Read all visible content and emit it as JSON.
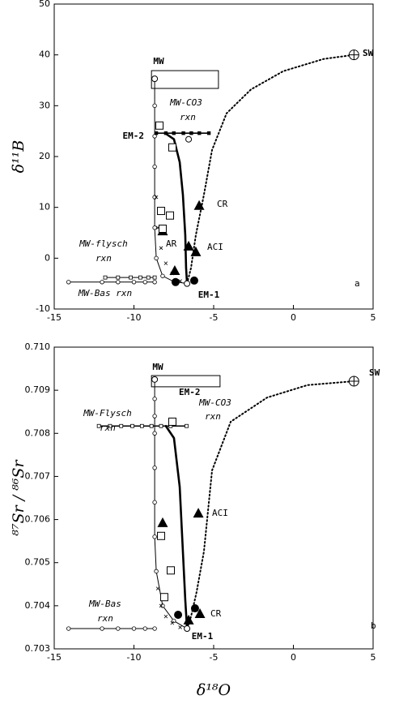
{
  "chart_data": [
    {
      "type": "line",
      "y_label": "δ¹¹B",
      "xlim": [
        -15,
        5
      ],
      "xticks": [
        -15,
        -10,
        -5,
        0,
        5
      ],
      "ylim": [
        -10,
        50
      ],
      "yticks": [
        -10,
        0,
        10,
        20,
        30,
        40,
        50
      ],
      "box": {
        "xlim": [
          -8.9,
          -4.7
        ],
        "ylim": [
          33.4,
          36.9
        ]
      },
      "annotations": [
        "MW",
        "SW",
        "EM-2",
        "EM-1",
        "CR",
        "ACI",
        "AR",
        "MW-CO3",
        "rxn",
        "MW-flysch",
        "rxn",
        "MW-Bas rxn",
        "a"
      ],
      "series": [
        {
          "line": "dotted",
          "marker": "none",
          "x": [
            -6.67,
            -6.42,
            -6.12,
            -5.61,
            -5.1,
            -4.19,
            -2.66,
            -0.63,
            1.9,
            3.8
          ],
          "values": [
            -5,
            -1.9,
            4.5,
            12.5,
            21.3,
            28.5,
            33.2,
            36.8,
            39.2,
            40
          ]
        },
        {
          "line": "thick",
          "marker": "none",
          "x": [
            -8.0,
            -7.49,
            -7.13,
            -6.93,
            -6.78,
            -6.73,
            -6.67
          ],
          "values": [
            24.5,
            23.4,
            18.9,
            12.5,
            4.5,
            -1.9,
            -5
          ]
        },
        {
          "line": "solid",
          "marker": "small-circle",
          "x": [
            -8.7,
            -8.7,
            -8.7,
            -8.7,
            -8.7,
            -8.7,
            -8.6,
            -8.2,
            -7.5,
            -6.67
          ],
          "values": [
            35.3,
            30,
            24,
            18,
            12,
            6,
            0,
            -3.5,
            -4.6,
            -5
          ]
        },
        {
          "line": "medium",
          "marker": "small-square-filled",
          "x": [
            -8.6,
            -8.0,
            -7.5,
            -6.9,
            -6.4,
            -5.9,
            -5.3
          ],
          "values": [
            24.6,
            24.6,
            24.6,
            24.6,
            24.6,
            24.6,
            24.6
          ]
        },
        {
          "line": "solid",
          "marker": "small-square",
          "x": [
            -11.8,
            -11,
            -10.2,
            -9.6,
            -9.1,
            -8.7
          ],
          "values": [
            -3.8,
            -3.8,
            -3.8,
            -3.8,
            -3.8,
            -3.8
          ]
        },
        {
          "line": "solid",
          "marker": "small-circle",
          "x": [
            -14.1,
            -12,
            -11,
            -10,
            -9.3,
            -8.7
          ],
          "values": [
            -4.7,
            -4.7,
            -4.7,
            -4.7,
            -4.7,
            -4.7
          ]
        },
        {
          "line": "none",
          "marker": "cross",
          "x": [
            -8.6,
            -8.5,
            -8.3,
            -8.0,
            -7.6,
            -7.1
          ],
          "values": [
            12,
            6,
            2,
            -1,
            -3,
            -4.5
          ]
        },
        {
          "line": "none",
          "marker": "triangle",
          "x": [
            -5.91,
            -6.57,
            -6.12,
            -7.44,
            -8.2
          ],
          "values": [
            10.3,
            2.3,
            1.2,
            -2.5,
            5.3
          ]
        },
        {
          "line": "none",
          "marker": "filled-circle",
          "x": [
            -7.39,
            -6.22
          ],
          "values": [
            -4.7,
            -4.4
          ]
        },
        {
          "line": "none",
          "marker": "open-square",
          "x": [
            -8.4,
            -7.59,
            -8.3,
            -7.74,
            -8.2
          ],
          "values": [
            26.1,
            21.8,
            9.3,
            8.4,
            5.8
          ]
        },
        {
          "line": "none",
          "marker": "circle-plus",
          "x": [
            3.8
          ],
          "values": [
            40
          ]
        },
        {
          "line": "none",
          "marker": "open-circle",
          "x": [
            -8.7,
            -6.57,
            -6.67
          ],
          "values": [
            35.3,
            23.4,
            -5
          ]
        }
      ]
    },
    {
      "type": "line",
      "y_label": "⁸⁷Sr / ⁸⁶Sr",
      "x_label": "δ¹⁸O",
      "xlim": [
        -15,
        5
      ],
      "xticks": [
        -15,
        -10,
        -5,
        0,
        5
      ],
      "ylim": [
        0.703,
        0.71
      ],
      "yticks": [
        0.703,
        0.704,
        0.705,
        0.706,
        0.707,
        0.708,
        0.709,
        {
          "value": 0.71,
          "label": "0.710"
        }
      ],
      "box": {
        "xlim": [
          -8.9,
          -4.6
        ],
        "ylim": [
          0.70908,
          0.70934
        ]
      },
      "annotations": [
        "MW",
        "SW",
        "EM-2",
        "MW-CO3",
        "rxn",
        "MW-Flysch",
        "rxn",
        "ACI",
        "MW-Bas",
        "rxn",
        "CR",
        "EM-1",
        "b"
      ],
      "series": [
        {
          "line": "dotted",
          "marker": "none",
          "x": [
            -6.67,
            -6.42,
            -6.07,
            -5.61,
            -5.1,
            -3.93,
            -1.65,
            0.89,
            3.8
          ],
          "values": [
            0.70347,
            0.70375,
            0.70432,
            0.70526,
            0.70714,
            0.70827,
            0.70883,
            0.70912,
            0.70921
          ]
        },
        {
          "line": "thick",
          "marker": "none",
          "x": [
            -8.0,
            -7.49,
            -7.13,
            -6.93,
            -6.78,
            -6.67
          ],
          "values": [
            0.70817,
            0.70789,
            0.70676,
            0.70526,
            0.70413,
            0.70347
          ]
        },
        {
          "line": "solid",
          "marker": "small-circle",
          "x": [
            -8.7,
            -8.7,
            -8.7,
            -8.7,
            -8.7,
            -8.7,
            -8.7,
            -8.6,
            -8.2,
            -7.5,
            -6.67
          ],
          "values": [
            0.70925,
            0.7088,
            0.7084,
            0.708,
            0.7072,
            0.7064,
            0.7056,
            0.7048,
            0.704,
            0.70365,
            0.70347
          ]
        },
        {
          "line": "medium",
          "marker": "small-square",
          "x": [
            -12.2,
            -11.5,
            -10.8,
            -10.1,
            -9.5,
            -8.9,
            -8.3,
            -7.7,
            -6.7
          ],
          "values": [
            0.70817,
            0.70817,
            0.70817,
            0.70817,
            0.70817,
            0.70817,
            0.70817,
            0.70817,
            0.70817
          ]
        },
        {
          "line": "solid",
          "marker": "small-circle",
          "x": [
            -14.1,
            -12,
            -11,
            -10,
            -9.3,
            -8.7
          ],
          "values": [
            0.70347,
            0.70347,
            0.70347,
            0.70347,
            0.70347,
            0.70347
          ]
        },
        {
          "line": "none",
          "marker": "cross",
          "x": [
            -8.5,
            -8.3,
            -8.0,
            -7.6,
            -7.1
          ],
          "values": [
            0.7044,
            0.704,
            0.70375,
            0.7036,
            0.7035
          ]
        },
        {
          "line": "none",
          "marker": "triangle",
          "x": [
            -5.96,
            -8.2,
            -5.86,
            -6.57
          ],
          "values": [
            0.70614,
            0.70592,
            0.70381,
            0.70366
          ]
        },
        {
          "line": "none",
          "marker": "filled-circle",
          "x": [
            -6.17,
            -7.23
          ],
          "values": [
            0.70394,
            0.70379
          ]
        },
        {
          "line": "none",
          "marker": "open-square",
          "x": [
            -8.3,
            -7.69,
            -8.1,
            -7.59
          ],
          "values": [
            0.70562,
            0.70482,
            0.7042,
            0.70827
          ]
        },
        {
          "line": "none",
          "marker": "circle-plus",
          "x": [
            3.8
          ],
          "values": [
            0.70921
          ]
        },
        {
          "line": "none",
          "marker": "open-circle",
          "x": [
            -8.7,
            -6.67
          ],
          "values": [
            0.70925,
            0.70347
          ]
        }
      ]
    }
  ]
}
